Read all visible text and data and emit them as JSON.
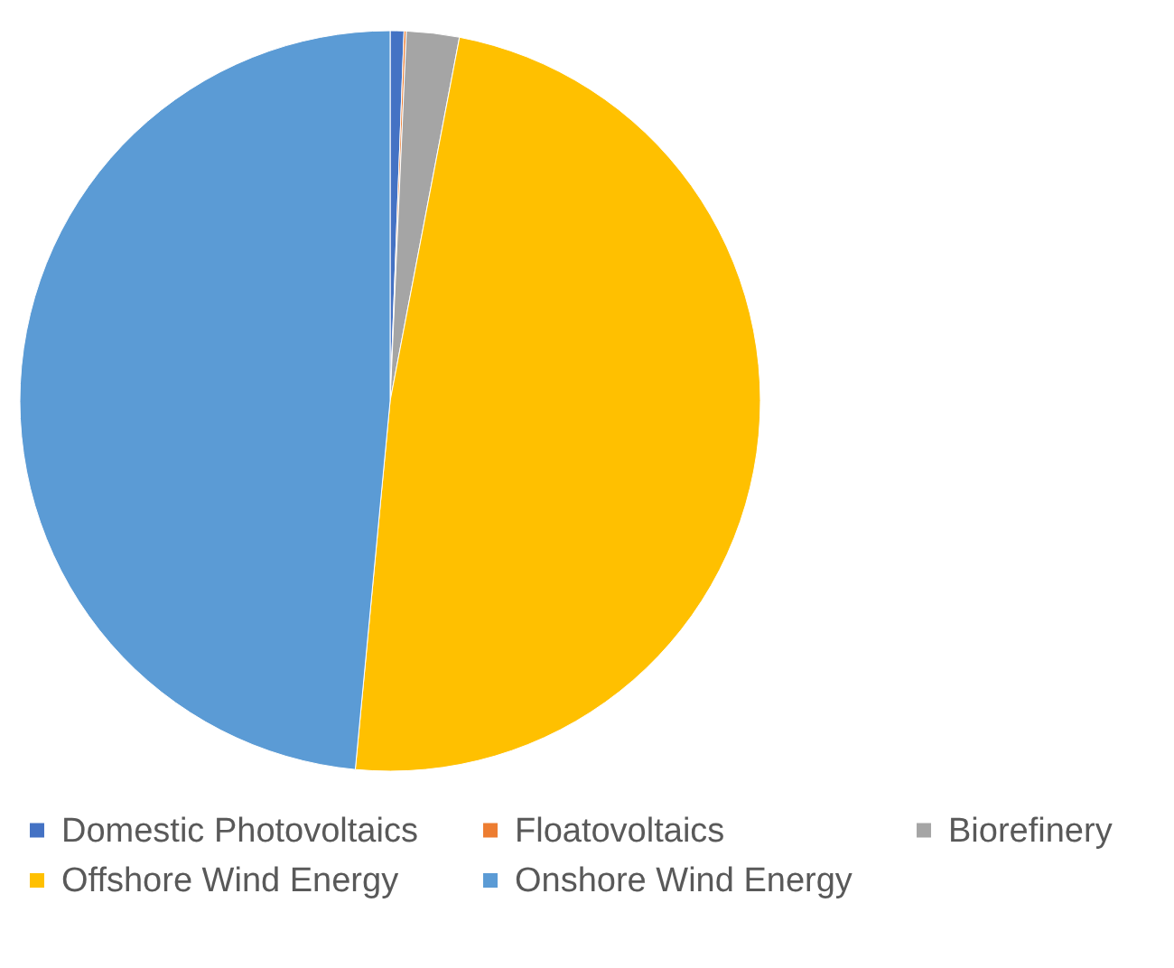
{
  "chart_data": {
    "type": "pie",
    "categories": [
      "Domestic Photovoltaics",
      "Floatovoltaics",
      "Biorefinery",
      "Offshore Wind Energy",
      "Onshore Wind Energy"
    ],
    "values": [
      0.6,
      0.1,
      2.3,
      48.5,
      48.5
    ],
    "colors": [
      "#4472c4",
      "#ed7d31",
      "#a5a5a5",
      "#ffc000",
      "#5b9bd5"
    ],
    "legend": "bottom"
  }
}
